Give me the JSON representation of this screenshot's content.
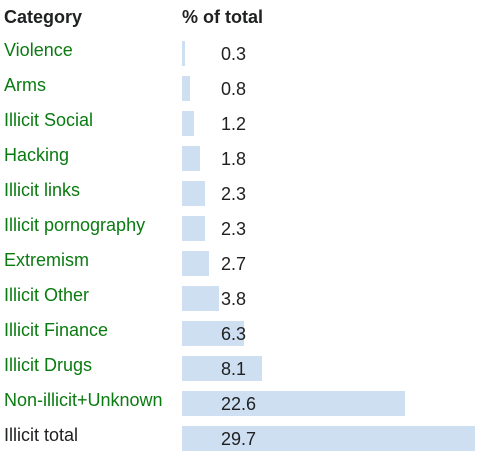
{
  "header": {
    "category": "Category",
    "percent": "% of total"
  },
  "colors": {
    "link": "#0a7b10",
    "text": "#202122",
    "bar": "#cddff1"
  },
  "chart_data": {
    "type": "table",
    "columns": [
      "Category",
      "% of total"
    ],
    "rows": [
      {
        "label": "Violence",
        "value": 0.3,
        "display": "0.3",
        "is_link": true
      },
      {
        "label": "Arms",
        "value": 0.8,
        "display": "0.8",
        "is_link": true
      },
      {
        "label": "Illicit Social",
        "value": 1.2,
        "display": "1.2",
        "is_link": true
      },
      {
        "label": "Hacking",
        "value": 1.8,
        "display": "1.8",
        "is_link": true
      },
      {
        "label": "Illicit links",
        "value": 2.3,
        "display": "2.3",
        "is_link": true
      },
      {
        "label": "Illicit pornography",
        "value": 2.3,
        "display": "2.3",
        "is_link": true
      },
      {
        "label": "Extremism",
        "value": 2.7,
        "display": "2.7",
        "is_link": true
      },
      {
        "label": "Illicit Other",
        "value": 3.8,
        "display": "3.8",
        "is_link": true
      },
      {
        "label": "Illicit Finance",
        "value": 6.3,
        "display": "6.3",
        "is_link": true
      },
      {
        "label": "Illicit Drugs",
        "value": 8.1,
        "display": "8.1",
        "is_link": true
      },
      {
        "label": "Non-illicit+Unknown",
        "value": 22.6,
        "display": "22.6",
        "is_link": true
      },
      {
        "label": "Illicit total",
        "value": 29.7,
        "display": "29.7",
        "is_link": false
      }
    ]
  }
}
